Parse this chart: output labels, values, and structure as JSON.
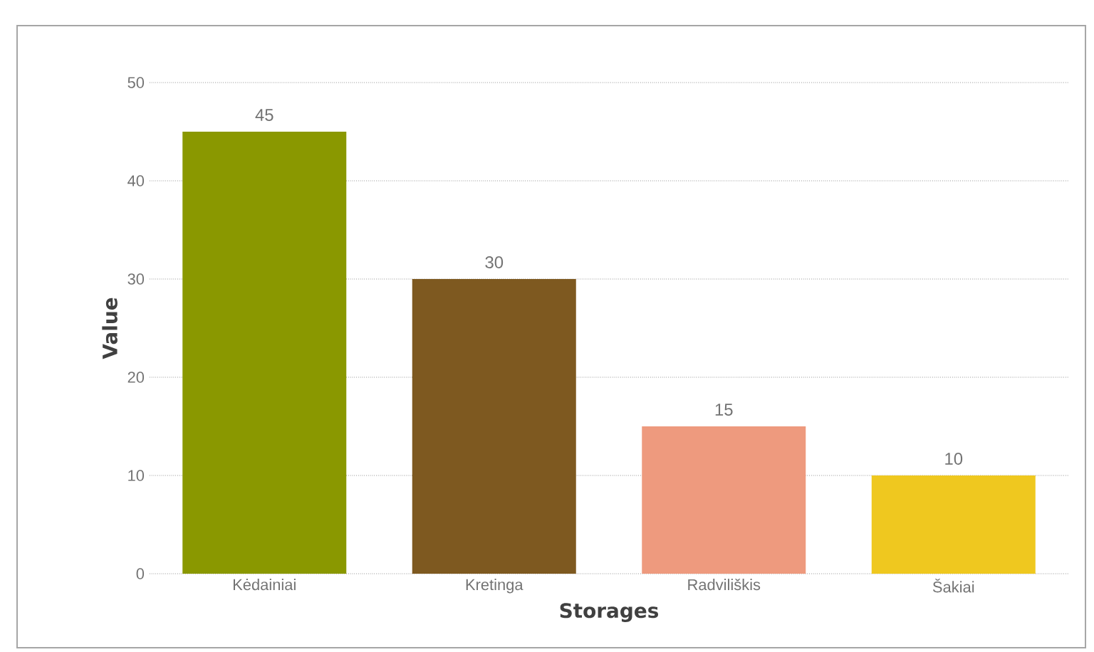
{
  "chart_data": {
    "type": "bar",
    "xlabel": "Storages",
    "ylabel": "Value",
    "categories": [
      "Kėdainiai",
      "Kretinga",
      "Radviliškis",
      "Šakiai"
    ],
    "values": [
      45,
      30,
      15,
      10
    ],
    "colors": [
      "#8a9800",
      "#7e5920",
      "#ee9a7e",
      "#efc81f"
    ],
    "ylim": [
      0,
      50
    ],
    "yticks": [
      0,
      10,
      20,
      30,
      40,
      50
    ],
    "grid": "y",
    "data_labels": true
  }
}
